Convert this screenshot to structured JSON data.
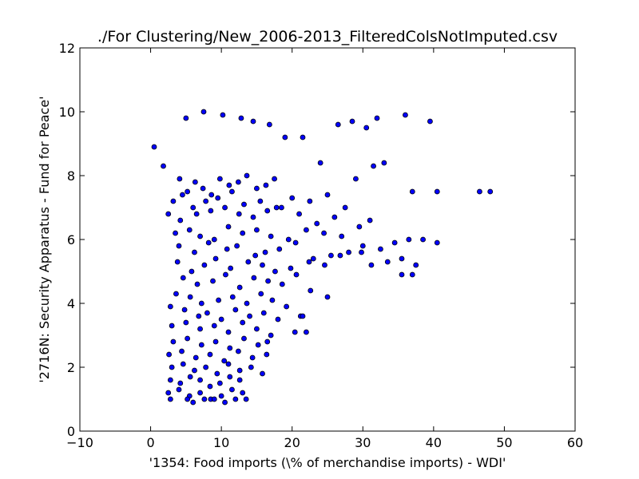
{
  "chart_data": {
    "type": "scatter",
    "title": "./For Clustering/New_2006-2013_FilteredColsNotImputed.csv",
    "xlabel": "'1354: Food imports  (\\% of merchandise imports) - WDI'",
    "ylabel": "'2716N: Security Apparatus - Fund for Peace'",
    "xlim": [
      -10,
      60
    ],
    "ylim": [
      0,
      12
    ],
    "xticks": [
      "−10",
      "0",
      "10",
      "20",
      "30",
      "40",
      "50",
      "60"
    ],
    "yticks": [
      "0",
      "2",
      "4",
      "6",
      "8",
      "10",
      "12"
    ],
    "grid": false,
    "legend": "none",
    "marker_color": "#0000ff",
    "series": [
      {
        "x": [
          0.5,
          1.8,
          2.5,
          3.2,
          4.1,
          5.2,
          6.3,
          7.4,
          8.6,
          9.8,
          11.1,
          12.4,
          13.6,
          15.0,
          16.3,
          17.5,
          5.0,
          7.5,
          10.2,
          12.8,
          14.5,
          16.8,
          19.0,
          21.5,
          24.0,
          26.5,
          28.5,
          30.5,
          32.0,
          36.0,
          39.5,
          4.5,
          6.0,
          7.8,
          9.5,
          11.5,
          13.2,
          15.5,
          17.8,
          20.0,
          22.5,
          25.0,
          27.5,
          29.0,
          31.5,
          33.0,
          4.2,
          6.5,
          8.5,
          10.5,
          12.5,
          14.5,
          16.5,
          18.5,
          21.0,
          23.5,
          26.0,
          29.5,
          31.0,
          37.0,
          40.5,
          46.5,
          48.0,
          3.5,
          5.5,
          7.0,
          9.0,
          11.0,
          13.0,
          15.0,
          17.0,
          19.5,
          22.0,
          24.5,
          27.0,
          4.0,
          6.2,
          8.2,
          10.8,
          12.2,
          14.8,
          16.2,
          18.2,
          20.5,
          23.0,
          25.5,
          28.0,
          30.0,
          32.5,
          34.5,
          36.5,
          38.5,
          40.5,
          3.8,
          5.8,
          7.6,
          9.2,
          11.3,
          13.8,
          15.8,
          17.6,
          19.8,
          22.4,
          24.6,
          26.8,
          29.8,
          31.2,
          33.5,
          35.5,
          37.5,
          4.6,
          6.6,
          8.8,
          10.6,
          12.6,
          14.6,
          16.6,
          18.6,
          20.6,
          22.6,
          3.6,
          5.6,
          7.2,
          9.6,
          11.6,
          13.6,
          15.6,
          17.2,
          19.2,
          21.2,
          25.0,
          35.5,
          37.0,
          2.8,
          4.8,
          6.8,
          8.0,
          10.0,
          12.0,
          14.0,
          16.0,
          18.0,
          20.4,
          3.0,
          5.0,
          7.0,
          9.0,
          11.0,
          13.0,
          15.0,
          17.0,
          21.5,
          22.0,
          3.2,
          5.2,
          7.2,
          9.2,
          11.2,
          13.2,
          15.2,
          16.5,
          2.6,
          4.4,
          6.4,
          8.4,
          10.4,
          12.4,
          14.4,
          16.4,
          3.0,
          4.6,
          6.2,
          7.8,
          9.4,
          11.0,
          12.6,
          14.2,
          15.8,
          2.8,
          4.2,
          5.6,
          7.0,
          8.4,
          9.8,
          11.2,
          12.6,
          2.5,
          4.0,
          5.5,
          7.0,
          8.5,
          10.0,
          11.5,
          13.0,
          2.8,
          5.2,
          6.0,
          7.6,
          9.0,
          10.5,
          12.0,
          13.5
        ],
        "y": [
          8.9,
          8.3,
          6.8,
          7.2,
          7.9,
          7.5,
          7.8,
          7.6,
          7.4,
          7.9,
          7.7,
          7.8,
          8.0,
          7.6,
          7.7,
          7.9,
          9.8,
          10.0,
          9.9,
          9.8,
          9.7,
          9.6,
          9.2,
          9.2,
          8.4,
          9.6,
          9.7,
          9.5,
          9.8,
          9.9,
          9.7,
          7.4,
          7.0,
          7.2,
          7.3,
          7.5,
          7.1,
          7.2,
          7.0,
          7.3,
          7.2,
          7.4,
          7.0,
          7.9,
          8.3,
          8.4,
          6.6,
          6.8,
          6.9,
          7.0,
          6.8,
          6.7,
          6.9,
          7.0,
          6.8,
          6.5,
          6.7,
          6.4,
          6.6,
          7.5,
          7.5,
          7.5,
          7.5,
          6.2,
          6.3,
          6.1,
          6.0,
          6.4,
          6.2,
          6.3,
          6.1,
          6.0,
          6.3,
          6.2,
          6.1,
          5.8,
          5.6,
          5.9,
          5.7,
          5.8,
          5.5,
          5.6,
          5.7,
          5.9,
          5.4,
          5.5,
          5.6,
          5.8,
          5.7,
          5.9,
          6.0,
          6.0,
          5.9,
          5.3,
          5.0,
          5.2,
          5.4,
          5.1,
          5.3,
          5.2,
          5.0,
          5.1,
          5.3,
          5.2,
          5.5,
          5.6,
          5.2,
          5.3,
          5.4,
          5.2,
          4.8,
          4.6,
          4.7,
          4.9,
          4.5,
          4.8,
          4.7,
          4.6,
          4.9,
          4.4,
          4.3,
          4.2,
          4.0,
          4.1,
          4.2,
          4.0,
          4.3,
          4.1,
          3.9,
          3.6,
          4.2,
          4.9,
          4.9,
          3.9,
          3.8,
          3.6,
          3.7,
          3.5,
          3.8,
          3.6,
          3.7,
          3.5,
          3.1,
          3.3,
          3.4,
          3.2,
          3.3,
          3.1,
          3.4,
          3.2,
          3.0,
          3.6,
          3.1,
          2.8,
          2.9,
          2.7,
          2.8,
          2.6,
          2.9,
          2.7,
          2.8,
          2.4,
          2.5,
          2.3,
          2.4,
          2.2,
          2.5,
          2.3,
          2.4,
          2.0,
          2.1,
          1.9,
          2.0,
          1.8,
          2.1,
          1.9,
          2.0,
          1.8,
          1.6,
          1.5,
          1.7,
          1.6,
          1.4,
          1.5,
          1.7,
          1.6,
          1.2,
          1.3,
          1.1,
          1.2,
          1.0,
          1.1,
          1.3,
          1.2,
          1.0,
          1.0,
          0.9,
          1.0,
          1.0,
          0.9,
          1.0,
          1.0
        ]
      }
    ]
  }
}
